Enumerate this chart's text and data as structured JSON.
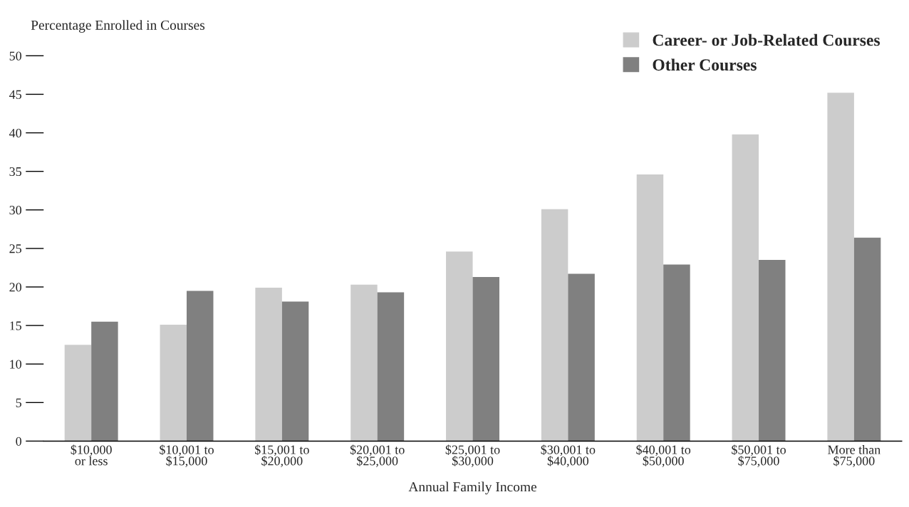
{
  "chart_data": {
    "type": "bar",
    "xlabel": "Annual Family Income",
    "ylabel": "Percentage Enrolled in Courses",
    "categories": [
      "$10,000\nor less",
      "$10,001 to\n$15,000",
      "$15,001 to\n$20,000",
      "$20,001 to\n$25,000",
      "$25,001 to\n$30,000",
      "$30,001 to\n$40,000",
      "$40,001 to\n$50,000",
      "$50,001 to\n$75,000",
      "More than\n$75,000"
    ],
    "series": [
      {
        "name": "Career- or Job-Related Courses",
        "color": "#cccccc",
        "values": [
          12.5,
          15.1,
          19.9,
          20.3,
          24.6,
          30.1,
          34.6,
          39.8,
          45.2
        ]
      },
      {
        "name": "Other Courses",
        "color": "#808080",
        "values": [
          15.5,
          19.5,
          18.1,
          19.3,
          21.3,
          21.7,
          22.9,
          23.5,
          26.4
        ]
      }
    ],
    "ylim": [
      0,
      50
    ],
    "yticks": [
      0,
      5,
      10,
      15,
      20,
      25,
      30,
      35,
      40,
      45,
      50
    ],
    "grid": false,
    "legend": "top right"
  }
}
